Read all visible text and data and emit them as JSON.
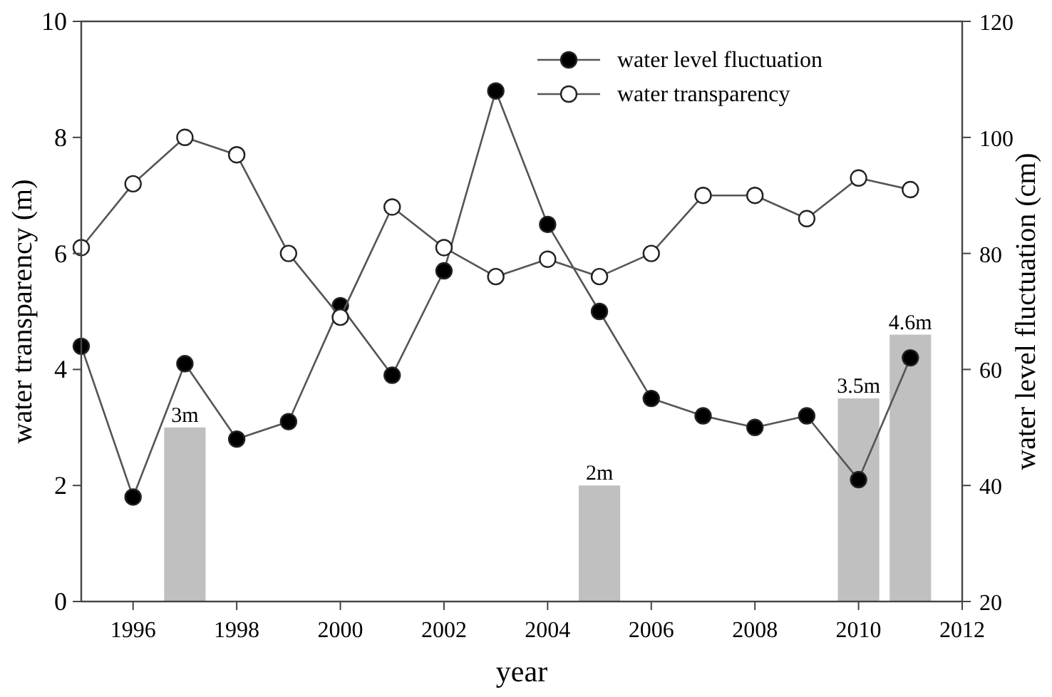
{
  "chart_data": {
    "type": "line",
    "xlabel": "year",
    "ylabel": "water transparency (m)",
    "y2label": "water level fluctuation (cm)",
    "xlim": [
      1995,
      2012
    ],
    "xticks": [
      1996,
      1998,
      2000,
      2002,
      2004,
      2006,
      2008,
      2010,
      2012
    ],
    "ylim": [
      0,
      10
    ],
    "yticks": [
      0,
      2,
      4,
      6,
      8,
      10
    ],
    "y2lim": [
      20,
      120
    ],
    "y2ticks": [
      20,
      40,
      60,
      80,
      100,
      120
    ],
    "legend": "top right",
    "marker": "circle",
    "grid": false,
    "series": [
      {
        "type": "bar",
        "color": "#c0c0c0",
        "x": [
          1997,
          2005,
          2010,
          2011
        ],
        "values": [
          3,
          2,
          3.5,
          4.6
        ],
        "value_labels": [
          "3m",
          "2m",
          "3.5m",
          "4.6m"
        ]
      },
      {
        "name": "water level fluctuation",
        "color": "#000000",
        "axis": "y2",
        "x": [
          1995,
          1996,
          1997,
          1998,
          1999,
          2000,
          2001,
          2002,
          2003,
          2004,
          2005,
          2006,
          2007,
          2008,
          2009,
          2010,
          2011
        ],
        "values": [
          64,
          38,
          61,
          48,
          51,
          71,
          59,
          77,
          108,
          85,
          70,
          55,
          52,
          50,
          52,
          41,
          62
        ]
      },
      {
        "name": "water transparency",
        "color": "#ffffff",
        "x": [
          1995,
          1996,
          1997,
          1998,
          1999,
          2000,
          2001,
          2002,
          2003,
          2004,
          2005,
          2006,
          2007,
          2008,
          2009,
          2010,
          2011
        ],
        "values": [
          6.1,
          7.2,
          8.0,
          7.7,
          6.0,
          4.9,
          6.8,
          6.1,
          5.6,
          5.9,
          5.6,
          6.0,
          7.0,
          7.0,
          6.6,
          7.3,
          7.1
        ]
      }
    ]
  }
}
